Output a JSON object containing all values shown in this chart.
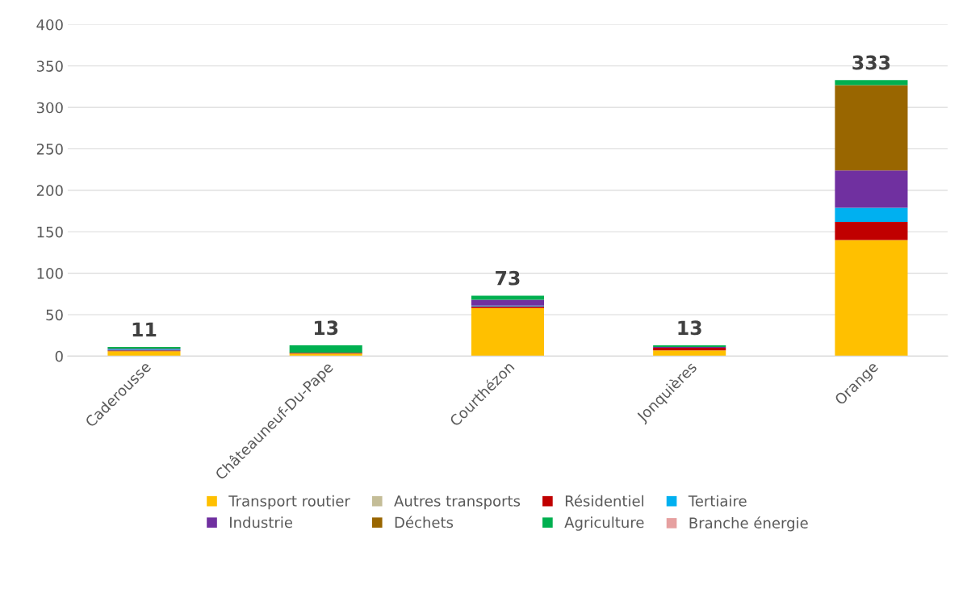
{
  "chart_data": {
    "type": "bar",
    "stacked": true,
    "categories": [
      "Caderousse",
      "Châteauneuf-Du-Pape",
      "Courthézon",
      "Jonquières",
      "Orange"
    ],
    "series": [
      {
        "name": "Transport routier",
        "color": "#ffc000",
        "values": [
          6,
          3,
          58,
          7,
          140
        ]
      },
      {
        "name": "Autres transports",
        "color": "#c4bd97",
        "values": [
          0,
          0,
          0,
          0,
          0
        ]
      },
      {
        "name": "Résidentiel",
        "color": "#c00000",
        "values": [
          1,
          1,
          2,
          3,
          22
        ]
      },
      {
        "name": "Tertiaire",
        "color": "#00b0f0",
        "values": [
          1,
          0,
          1,
          0,
          17
        ]
      },
      {
        "name": "Industrie",
        "color": "#7030a0",
        "values": [
          1,
          0,
          7,
          1,
          45
        ]
      },
      {
        "name": "Déchets",
        "color": "#996600",
        "values": [
          0,
          0,
          0,
          0,
          103
        ]
      },
      {
        "name": "Agriculture",
        "color": "#00b050",
        "values": [
          2,
          9,
          5,
          2,
          6
        ]
      },
      {
        "name": "Branche énergie",
        "color": "#e6a0a0",
        "values": [
          0,
          0,
          0,
          0,
          0
        ]
      }
    ],
    "totals": [
      "11",
      "13",
      "73",
      "13",
      "333"
    ],
    "ylim": [
      0,
      400
    ],
    "yticks": [
      0,
      50,
      100,
      150,
      200,
      250,
      300,
      350,
      400
    ],
    "grid": "y",
    "legend": "bottom"
  }
}
